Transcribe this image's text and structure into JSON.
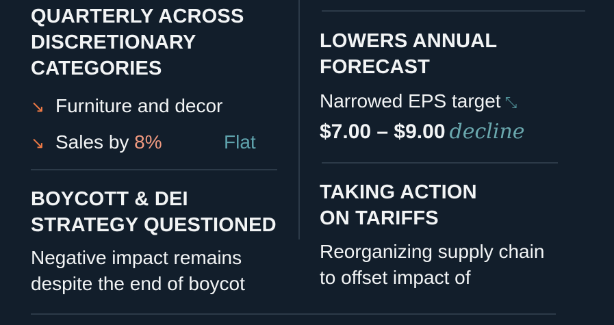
{
  "left": {
    "section1": {
      "heading_lines": [
        "QUARTERLY ACROSS",
        "DISCRETIONARY",
        "CATEGORIES"
      ],
      "items": [
        {
          "icon": "arrow-down-right-icon",
          "text": "Furniture and decor"
        },
        {
          "icon": "arrow-down-right-icon",
          "text": "Sales by ",
          "highlight": "8%",
          "tag": "Flat"
        }
      ]
    },
    "section2": {
      "heading_lines": [
        "BOYCOTT & DEI",
        "STRATEGY QUESTIONED"
      ],
      "body_lines": [
        "Negative impact remains",
        "despite the end of boycot"
      ]
    }
  },
  "right": {
    "section1": {
      "heading_lines": [
        "LOWERS ANNUAL",
        "FORECAST"
      ],
      "label": "Narrowed EPS target",
      "trend_icon": "trend-arrow-icon",
      "range": "$7.00 – $9.00",
      "note": "decline"
    },
    "section2": {
      "heading_lines": [
        "TAKING ACTION",
        "ON TARIFFS"
      ],
      "body_lines": [
        "Reorganizing supply chain",
        "to offset impact of"
      ]
    }
  },
  "colors": {
    "background": "#121e2b",
    "accent_orange": "#ef7a45",
    "accent_teal": "#5fa3ad"
  }
}
